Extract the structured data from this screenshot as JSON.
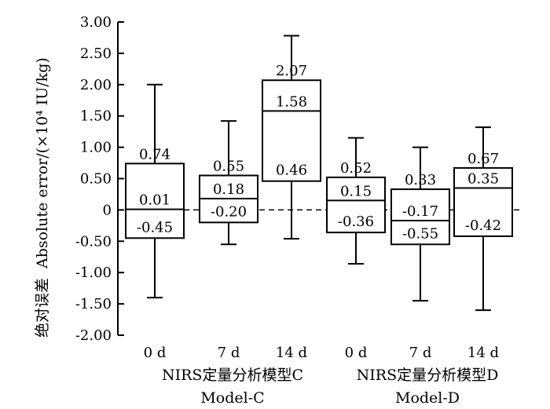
{
  "chart_data": {
    "type": "box",
    "ylabel_cn": "绝对误差",
    "ylabel_en": "Absolute error/(×10⁴ IU/kg)",
    "ylim": [
      -2.0,
      3.0
    ],
    "yticks": [
      "3.00",
      "2.50",
      "2.00",
      "1.50",
      "1.00",
      "0.50",
      "0",
      "-0.50",
      "-1.00",
      "-1.50",
      "-2.00"
    ],
    "ytick_values": [
      3.0,
      2.5,
      2.0,
      1.5,
      1.0,
      0.5,
      0,
      -0.5,
      -1.0,
      -1.5,
      -2.0
    ],
    "reference_line": 0,
    "boxes": [
      {
        "category": "0 d",
        "group": "Model-C",
        "whisker_low": -1.4,
        "q1": -0.45,
        "median": 0.01,
        "q3": 0.74,
        "whisker_high": 2.0,
        "labels": {
          "q3": "0.74",
          "median": "0.01",
          "q1": "-0.45"
        }
      },
      {
        "category": "7 d",
        "group": "Model-C",
        "whisker_low": -0.55,
        "q1": -0.2,
        "median": 0.18,
        "q3": 0.55,
        "whisker_high": 1.42,
        "labels": {
          "q3": "0.55",
          "median": "0.18",
          "q1": "-0.20"
        }
      },
      {
        "category": "14 d",
        "group": "Model-C",
        "whisker_low": -0.46,
        "q1": 0.46,
        "median": 1.58,
        "q3": 2.07,
        "whisker_high": 2.78,
        "labels": {
          "q3": "2.07",
          "median": "1.58",
          "q1": "0.46"
        }
      },
      {
        "category": "0 d",
        "group": "Model-D",
        "whisker_low": -0.86,
        "q1": -0.36,
        "median": 0.15,
        "q3": 0.52,
        "whisker_high": 1.15,
        "labels": {
          "q3": "0.52",
          "median": "0.15",
          "q1": "-0.36"
        }
      },
      {
        "category": "7 d",
        "group": "Model-D",
        "whisker_low": -1.45,
        "q1": -0.55,
        "median": -0.17,
        "q3": 0.33,
        "whisker_high": 1.0,
        "labels": {
          "q3": "0.33",
          "median": "-0.17",
          "q1": "-0.55"
        }
      },
      {
        "category": "14 d",
        "group": "Model-D",
        "whisker_low": -1.6,
        "q1": -0.42,
        "median": 0.35,
        "q3": 0.67,
        "whisker_high": 1.32,
        "labels": {
          "q3": "0.67",
          "median": "0.35",
          "q1": "-0.42"
        }
      }
    ],
    "groups": [
      {
        "name_cn": "NIRS定量分析模型C",
        "name_en": "Model-C"
      },
      {
        "name_cn": "NIRS定量分析模型D",
        "name_en": "Model-D"
      }
    ]
  }
}
